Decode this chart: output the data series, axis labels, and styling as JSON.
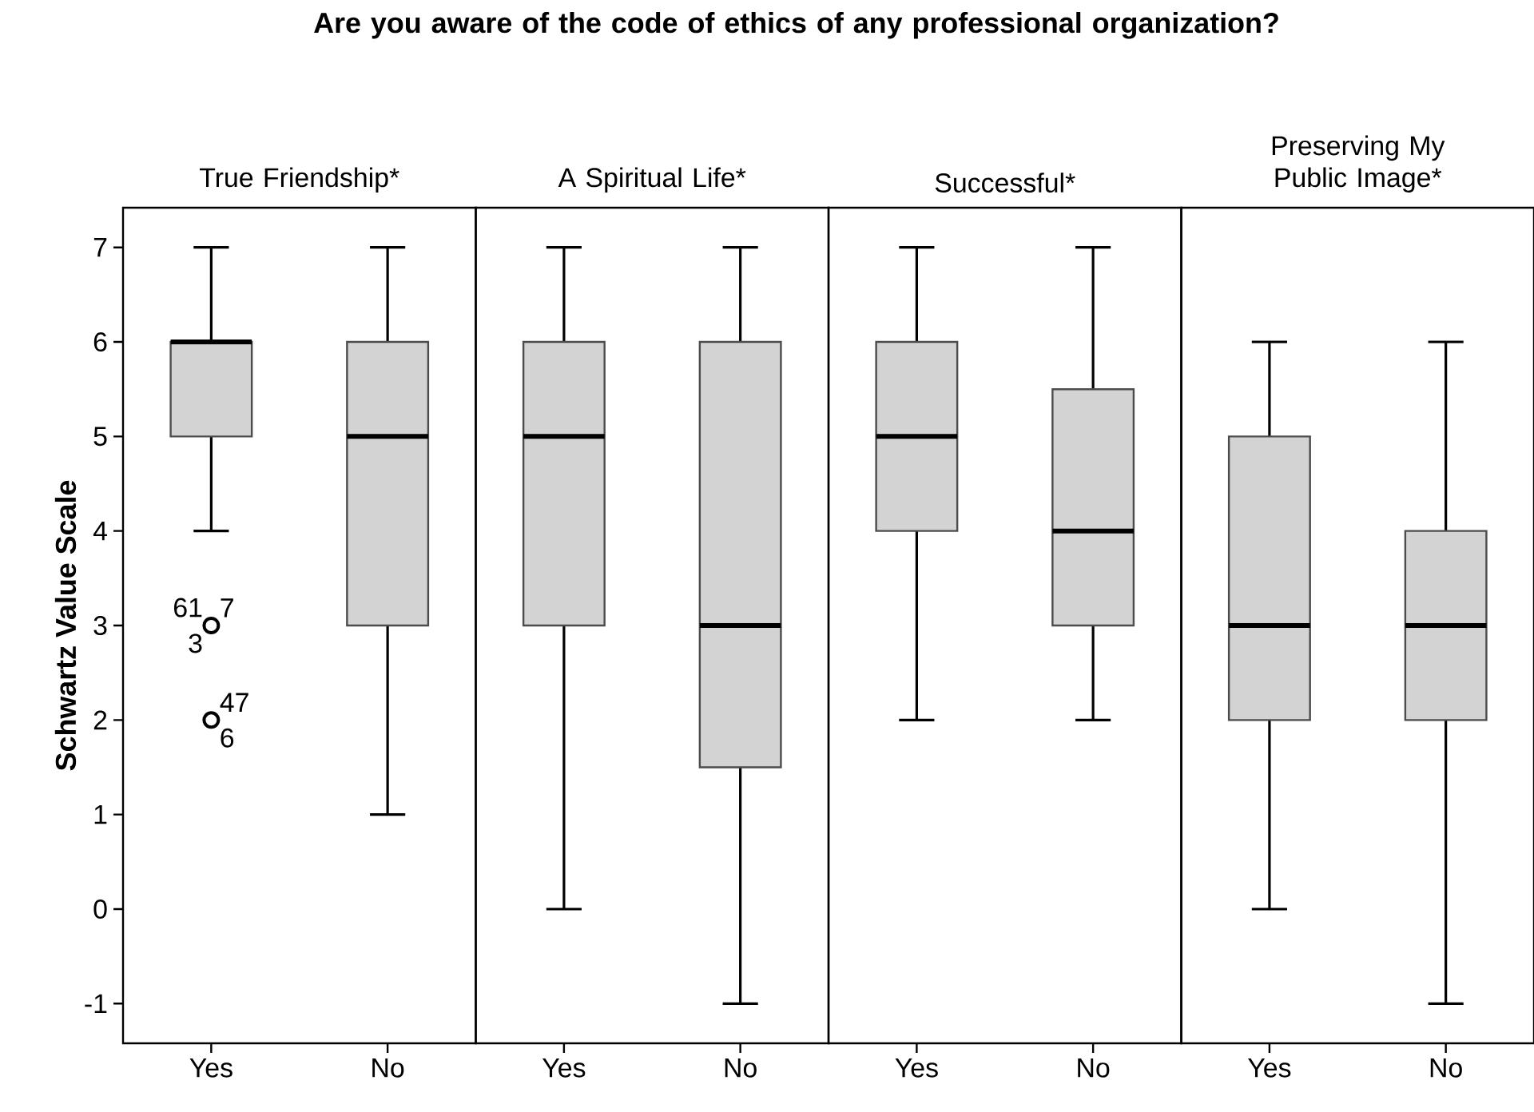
{
  "chart_data": [
    {
      "type": "box",
      "title": "Are you aware of the code of ethics of any professional organization?",
      "subtitle": "True Friendship*",
      "ylabel": "Schwartz Value Scale",
      "categories": [
        "Yes",
        "No"
      ],
      "color": "#d3d3d3",
      "ylim": [
        -1.42,
        7.42
      ],
      "yticks": [
        -1,
        0,
        1,
        2,
        3,
        4,
        5,
        6,
        7
      ],
      "boxes": [
        {
          "low": 4,
          "q1": 5,
          "median": 6,
          "q3": 6,
          "high": 7,
          "outliers": [
            3,
            2
          ]
        },
        {
          "low": 1,
          "q1": 3,
          "median": 5,
          "q3": 6,
          "high": 7
        }
      ],
      "annotations": [
        "61",
        "7",
        "3",
        "47",
        "6"
      ]
    },
    {
      "type": "box",
      "subtitle": "A Spiritual Life*",
      "categories": [
        "Yes",
        "No"
      ],
      "color": "#d3d3d3",
      "ylim": [
        -1.42,
        7.42
      ],
      "yticks": [
        -1,
        0,
        1,
        2,
        3,
        4,
        5,
        6,
        7
      ],
      "tick_labels": "x",
      "boxes": [
        {
          "low": 0,
          "q1": 3,
          "median": 5,
          "q3": 6,
          "high": 7
        },
        {
          "low": -1,
          "q1": 1.5,
          "median": 3,
          "q3": 6,
          "high": 7
        }
      ]
    },
    {
      "type": "box",
      "subtitle": "Successful*",
      "categories": [
        "Yes",
        "No"
      ],
      "color": "#d3d3d3",
      "ylim": [
        -1.42,
        7.42
      ],
      "yticks": [
        -1,
        0,
        1,
        2,
        3,
        4,
        5,
        6,
        7
      ],
      "tick_labels": "x",
      "boxes": [
        {
          "low": 2,
          "q1": 4,
          "median": 5,
          "q3": 6,
          "high": 7
        },
        {
          "low": 2,
          "q1": 3,
          "median": 4,
          "q3": 5.5,
          "high": 7
        }
      ]
    },
    {
      "type": "box",
      "subtitle": "Preserving My Public Image*",
      "categories": [
        "Yes",
        "No"
      ],
      "color": "#d3d3d3",
      "ylim": [
        -1.42,
        7.42
      ],
      "yticks": [
        -1,
        0,
        1,
        2,
        3,
        4,
        5,
        6,
        7
      ],
      "tick_labels": "x",
      "boxes": [
        {
          "low": 0,
          "q1": 2,
          "median": 3,
          "q3": 5,
          "high": 6
        },
        {
          "low": -1,
          "q1": 2,
          "median": 3,
          "q3": 4,
          "high": 6
        }
      ]
    }
  ]
}
